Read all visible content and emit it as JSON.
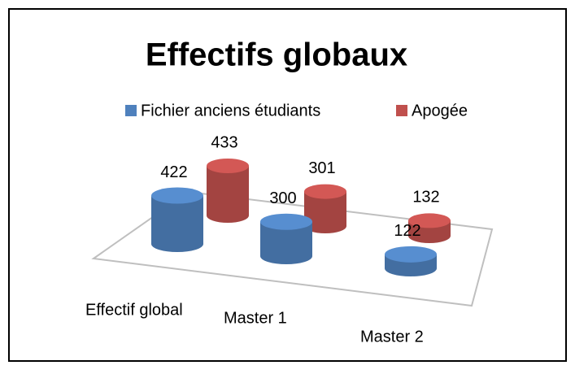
{
  "chart_data": {
    "type": "bar",
    "three_d": true,
    "title": "Effectifs globaux",
    "categories": [
      "Effectif global",
      "Master 1",
      "Master 2"
    ],
    "series": [
      {
        "name": "Fichier anciens étudiants",
        "color": "#4f81bd",
        "values": [
          422,
          300,
          122
        ]
      },
      {
        "name": "Apogée",
        "color": "#c0504d",
        "values": [
          433,
          301,
          132
        ]
      }
    ],
    "legend": "top",
    "data_labels": true
  }
}
